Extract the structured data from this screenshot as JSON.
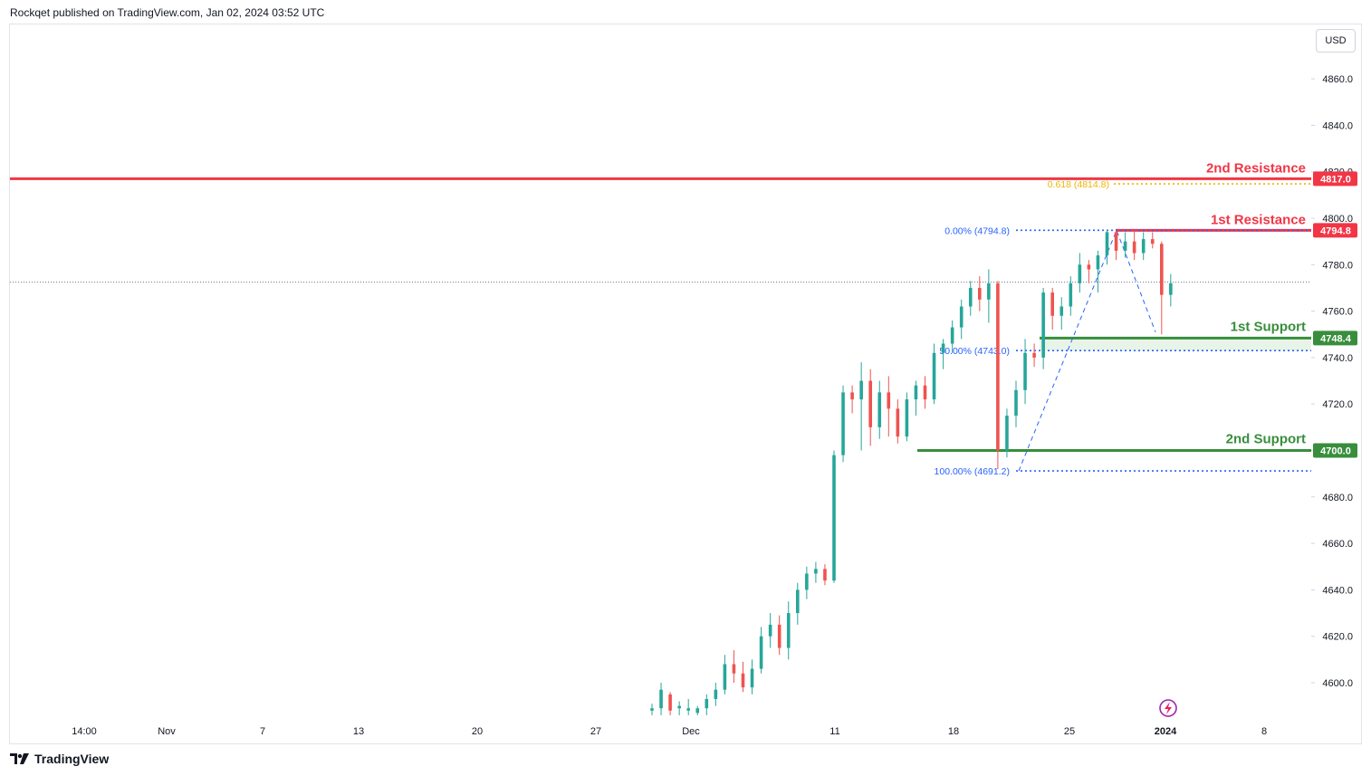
{
  "header": {
    "published": "Rockqet published on TradingView.com, Jan 02, 2024 03:52 UTC"
  },
  "currency": "USD",
  "footer": {
    "brand": "TradingView"
  },
  "colors": {
    "up": "#26a69a",
    "down": "#ef5350",
    "resistance": "#f23645",
    "support": "#388e3c",
    "fib_blue": "#2962ff",
    "fib_gold": "#f0b400"
  },
  "icons": {
    "brand_logo": "tradingview-logo-icon",
    "flash": "lightning-icon"
  },
  "chart_data": {
    "type": "candlestick",
    "ylim": [
      4586,
      4878
    ],
    "y_ticks": [
      4600,
      4620,
      4640,
      4660,
      4680,
      4700,
      4720,
      4740,
      4760,
      4780,
      4800,
      4820,
      4840,
      4860
    ],
    "y_tick_labels": [
      "4600.0",
      "4620.0",
      "4640.0",
      "4660.0",
      "4680.0",
      "4700.0",
      "4720.0",
      "4740.0",
      "4760.0",
      "4780.0",
      "4800.0",
      "4820.0",
      "4840.0",
      "4860.0"
    ],
    "x_tick_labels": [
      "14:00",
      "Nov",
      "7",
      "13",
      "20",
      "27",
      "Dec",
      "11",
      "18",
      "25",
      "2024",
      "8"
    ],
    "levels": [
      {
        "label": "2nd Resistance",
        "value": 4817.0,
        "badge": "4817.0",
        "kind": "resistance"
      },
      {
        "label": "1st Resistance",
        "value": 4794.8,
        "badge": "4794.8",
        "kind": "resistance"
      },
      {
        "label": "1st Support",
        "value": 4748.4,
        "badge": "4748.4",
        "kind": "support"
      },
      {
        "label": "2nd Support",
        "value": 4700.0,
        "badge": "4700.0",
        "kind": "support"
      }
    ],
    "fib_levels": [
      {
        "label": "0.618 (4814.8)",
        "value": 4814.8,
        "color": "gold"
      },
      {
        "label": "0.00% (4794.8)",
        "value": 4794.8,
        "color": "blue"
      },
      {
        "label": "50.00% (4743.0)",
        "value": 4743.0,
        "color": "blue"
      },
      {
        "label": "100.00% (4691.2)",
        "value": 4691.2,
        "color": "blue"
      }
    ],
    "last_price": 4772.5,
    "candles": [
      {
        "o": 4588,
        "h": 4591,
        "l": 4586,
        "c": 4589
      },
      {
        "o": 4589,
        "h": 4600,
        "l": 4586,
        "c": 4597
      },
      {
        "o": 4595,
        "h": 4596,
        "l": 4586,
        "c": 4588
      },
      {
        "o": 4589,
        "h": 4592,
        "l": 4586,
        "c": 4590
      },
      {
        "o": 4588,
        "h": 4593,
        "l": 4586,
        "c": 4589
      },
      {
        "o": 4587,
        "h": 4590,
        "l": 4586,
        "c": 4589
      },
      {
        "o": 4589,
        "h": 4595,
        "l": 4586,
        "c": 4593
      },
      {
        "o": 4593,
        "h": 4600,
        "l": 4590,
        "c": 4597
      },
      {
        "o": 4597,
        "h": 4612,
        "l": 4595,
        "c": 4608
      },
      {
        "o": 4608,
        "h": 4614,
        "l": 4600,
        "c": 4604
      },
      {
        "o": 4604,
        "h": 4609,
        "l": 4596,
        "c": 4598
      },
      {
        "o": 4598,
        "h": 4610,
        "l": 4595,
        "c": 4606
      },
      {
        "o": 4606,
        "h": 4624,
        "l": 4604,
        "c": 4620
      },
      {
        "o": 4620,
        "h": 4630,
        "l": 4615,
        "c": 4625
      },
      {
        "o": 4625,
        "h": 4629,
        "l": 4612,
        "c": 4615
      },
      {
        "o": 4615,
        "h": 4635,
        "l": 4610,
        "c": 4630
      },
      {
        "o": 4630,
        "h": 4643,
        "l": 4625,
        "c": 4640
      },
      {
        "o": 4640,
        "h": 4650,
        "l": 4636,
        "c": 4647
      },
      {
        "o": 4647,
        "h": 4652,
        "l": 4643,
        "c": 4649
      },
      {
        "o": 4649,
        "h": 4651,
        "l": 4642,
        "c": 4644
      },
      {
        "o": 4644,
        "h": 4700,
        "l": 4643,
        "c": 4698
      },
      {
        "o": 4698,
        "h": 4728,
        "l": 4695,
        "c": 4725
      },
      {
        "o": 4725,
        "h": 4728,
        "l": 4716,
        "c": 4722
      },
      {
        "o": 4722,
        "h": 4738,
        "l": 4700,
        "c": 4730
      },
      {
        "o": 4730,
        "h": 4735,
        "l": 4702,
        "c": 4710
      },
      {
        "o": 4710,
        "h": 4730,
        "l": 4705,
        "c": 4725
      },
      {
        "o": 4725,
        "h": 4732,
        "l": 4706,
        "c": 4718
      },
      {
        "o": 4718,
        "h": 4722,
        "l": 4703,
        "c": 4706
      },
      {
        "o": 4706,
        "h": 4725,
        "l": 4704,
        "c": 4722
      },
      {
        "o": 4722,
        "h": 4730,
        "l": 4715,
        "c": 4728
      },
      {
        "o": 4728,
        "h": 4732,
        "l": 4718,
        "c": 4722
      },
      {
        "o": 4722,
        "h": 4746,
        "l": 4720,
        "c": 4742
      },
      {
        "o": 4742,
        "h": 4748,
        "l": 4735,
        "c": 4746
      },
      {
        "o": 4746,
        "h": 4756,
        "l": 4742,
        "c": 4753
      },
      {
        "o": 4753,
        "h": 4765,
        "l": 4748,
        "c": 4762
      },
      {
        "o": 4762,
        "h": 4773,
        "l": 4758,
        "c": 4770
      },
      {
        "o": 4770,
        "h": 4775,
        "l": 4760,
        "c": 4765
      },
      {
        "o": 4765,
        "h": 4778,
        "l": 4755,
        "c": 4772
      },
      {
        "o": 4772,
        "h": 4773,
        "l": 4692,
        "c": 4700
      },
      {
        "o": 4700,
        "h": 4718,
        "l": 4697,
        "c": 4715
      },
      {
        "o": 4715,
        "h": 4730,
        "l": 4710,
        "c": 4726
      },
      {
        "o": 4726,
        "h": 4748,
        "l": 4720,
        "c": 4742
      },
      {
        "o": 4742,
        "h": 4746,
        "l": 4736,
        "c": 4740
      },
      {
        "o": 4740,
        "h": 4770,
        "l": 4735,
        "c": 4768
      },
      {
        "o": 4768,
        "h": 4770,
        "l": 4752,
        "c": 4758
      },
      {
        "o": 4758,
        "h": 4766,
        "l": 4752,
        "c": 4762
      },
      {
        "o": 4762,
        "h": 4775,
        "l": 4758,
        "c": 4772
      },
      {
        "o": 4772,
        "h": 4785,
        "l": 4768,
        "c": 4780
      },
      {
        "o": 4780,
        "h": 4782,
        "l": 4772,
        "c": 4778
      },
      {
        "o": 4778,
        "h": 4786,
        "l": 4768,
        "c": 4784
      },
      {
        "o": 4784,
        "h": 4795,
        "l": 4780,
        "c": 4794
      },
      {
        "o": 4794,
        "h": 4795,
        "l": 4782,
        "c": 4786
      },
      {
        "o": 4786,
        "h": 4794,
        "l": 4783,
        "c": 4790
      },
      {
        "o": 4790,
        "h": 4795,
        "l": 4782,
        "c": 4785
      },
      {
        "o": 4785,
        "h": 4794,
        "l": 4782,
        "c": 4791
      },
      {
        "o": 4791,
        "h": 4794,
        "l": 4787,
        "c": 4789
      },
      {
        "o": 4789,
        "h": 4790,
        "l": 4750,
        "c": 4767
      },
      {
        "o": 4767,
        "h": 4776,
        "l": 4762,
        "c": 4772
      }
    ]
  }
}
